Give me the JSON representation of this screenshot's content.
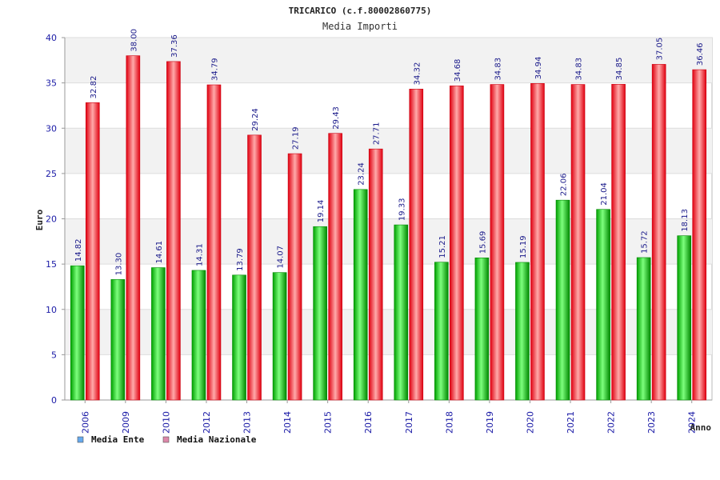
{
  "chart_data": {
    "type": "bar",
    "title": "TRICARICO (c.f.80002860775)",
    "subtitle": "Media Importi",
    "xlabel": "Anno",
    "ylabel": "Euro",
    "ylim": [
      0,
      40
    ],
    "yticks": [
      0,
      5,
      10,
      15,
      20,
      25,
      30,
      35,
      40
    ],
    "grid": true,
    "legend_position": "bottom-left",
    "categories": [
      "2006",
      "2009",
      "2010",
      "2012",
      "2013",
      "2014",
      "2015",
      "2016",
      "2017",
      "2018",
      "2019",
      "2020",
      "2021",
      "2022",
      "2023",
      "2024"
    ],
    "series": [
      {
        "name": "Media Ente",
        "color": "#00bb00",
        "legend_color": "#66aaee",
        "values": [
          14.82,
          13.3,
          14.61,
          14.31,
          13.79,
          14.07,
          19.14,
          23.24,
          19.33,
          15.21,
          15.69,
          15.19,
          22.06,
          21.04,
          15.72,
          18.13
        ],
        "labels": [
          "14.82",
          "13.30",
          "14.61",
          "14.31",
          "13.79",
          "14.07",
          "19.14",
          "23.24",
          "19.33",
          "15.21",
          "15.69",
          "15.19",
          "22.06",
          "21.04",
          "15.72",
          "18.13"
        ]
      },
      {
        "name": "Media Nazionale",
        "color": "#ee1122",
        "legend_color": "#dd88aa",
        "values": [
          32.82,
          38.0,
          37.36,
          34.79,
          29.24,
          27.19,
          29.43,
          27.71,
          34.32,
          34.68,
          34.83,
          34.94,
          34.83,
          34.85,
          37.05,
          36.46
        ],
        "labels": [
          "32.82",
          "38.00",
          "37.36",
          "34.79",
          "29.24",
          "27.19",
          "29.43",
          "27.71",
          "34.32",
          "34.68",
          "34.83",
          "34.94",
          "34.83",
          "34.85",
          "37.05",
          "36.46"
        ]
      }
    ]
  }
}
